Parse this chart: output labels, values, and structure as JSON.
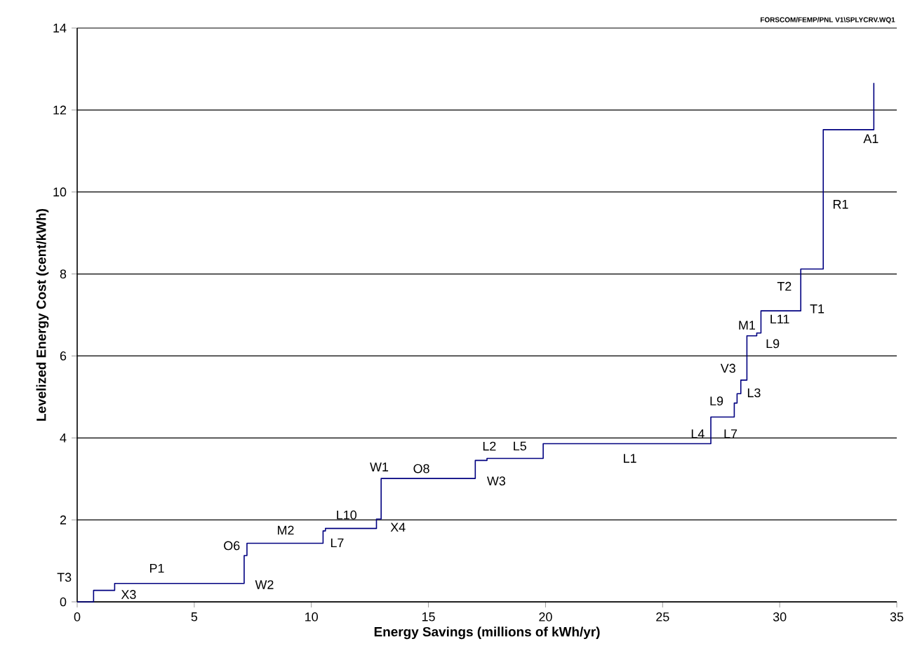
{
  "chart_data": {
    "type": "step",
    "xlabel": "Energy Savings (millions of kWh/yr)",
    "ylabel": "Levelized Energy Cost (cent/kWh)",
    "x": [
      0,
      0.7,
      1.6,
      7.13,
      7.25,
      10.5,
      10.6,
      12.78,
      12.98,
      17.0,
      17.5,
      19.9,
      27.06,
      28.06,
      28.18,
      28.34,
      28.6,
      29.02,
      29.2,
      30.9,
      31.86,
      34.02
    ],
    "values": [
      0,
      0.28,
      0.45,
      1.13,
      1.43,
      1.73,
      1.79,
      2.02,
      3.01,
      3.45,
      3.5,
      3.86,
      4.51,
      4.85,
      5.08,
      5.41,
      6.49,
      6.56,
      7.1,
      8.12,
      11.52,
      12.66
    ],
    "color": "#000080",
    "xlim": [
      0,
      35
    ],
    "ylim": [
      0,
      14
    ],
    "xticks": [
      0,
      5,
      10,
      15,
      20,
      25,
      30,
      35
    ],
    "yticks": [
      0,
      2,
      4,
      6,
      8,
      10,
      12,
      14
    ],
    "grid": "y",
    "marker": "none",
    "line_style": "solid",
    "annotations": [
      "FORSCOM/FEMP/PNL V1\\SPLYCRV.WQ1",
      "T3",
      "X3",
      "P1",
      "W2",
      "O6",
      "M2",
      "L7",
      "L10",
      "X4",
      "W1",
      "O8",
      "L2",
      "W3",
      "L5",
      "L1",
      "L4",
      "L7",
      "L9",
      "L3",
      "V3",
      "L9",
      "M1",
      "L11",
      "T2",
      "T1",
      "R1",
      "A1"
    ]
  }
}
